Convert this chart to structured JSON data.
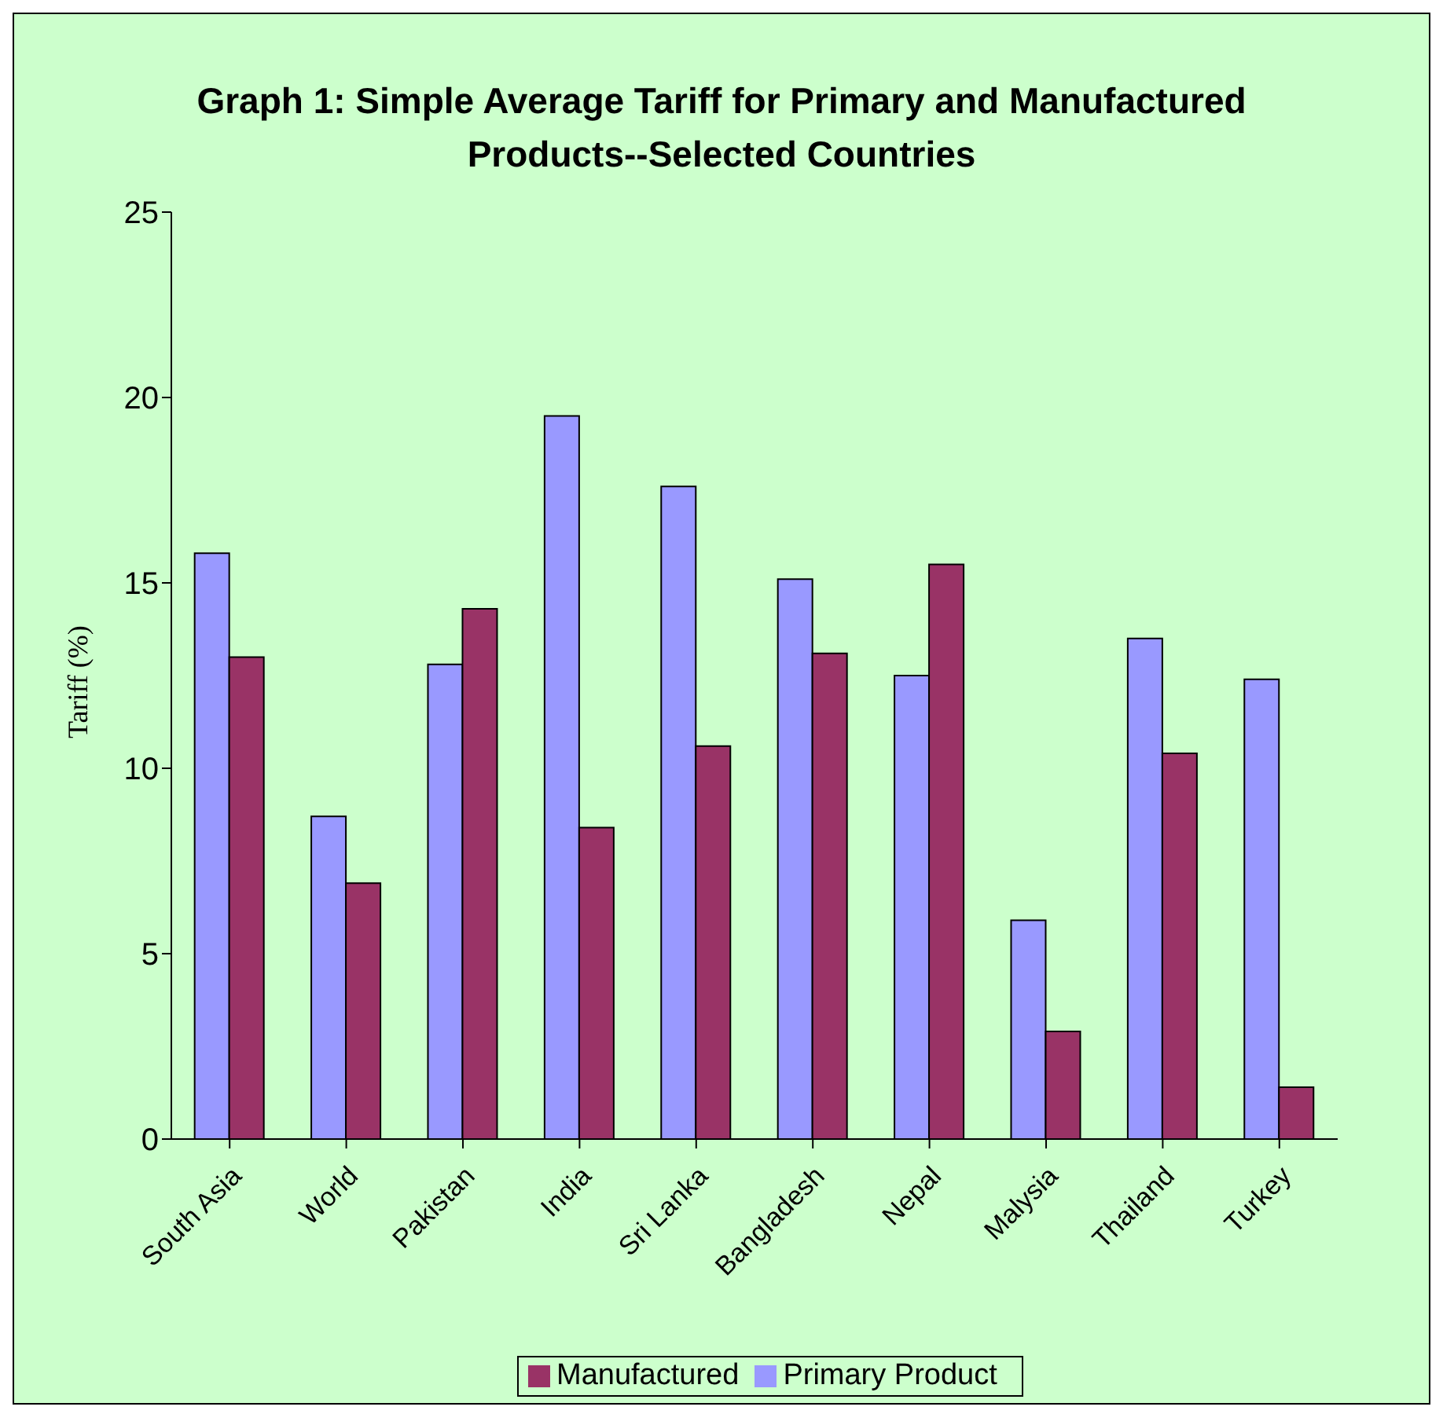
{
  "chart_data": {
    "type": "bar",
    "title": "Graph 1: Simple Average Tariff for Primary and Manufactured Products--Selected Countries",
    "ylabel": "Tariff (%)",
    "categories": [
      "South Asia",
      "World",
      "Pakistan",
      "India",
      "Sri Lanka",
      "Bangladesh",
      "Nepal",
      "Malysia",
      "Thailand",
      "Turkey"
    ],
    "series": [
      {
        "name": "Primary Product",
        "color": "#9999ff",
        "values": [
          15.8,
          8.7,
          12.8,
          19.5,
          17.6,
          15.1,
          12.5,
          5.9,
          13.5,
          12.4
        ]
      },
      {
        "name": "Manufactured",
        "color": "#993366",
        "values": [
          13.0,
          6.9,
          14.3,
          8.4,
          10.6,
          13.1,
          15.5,
          2.9,
          10.4,
          1.4
        ]
      }
    ],
    "ylim": [
      0,
      25
    ],
    "yticks": [
      0,
      5,
      10,
      15,
      20,
      25
    ],
    "grid": false,
    "legend": "bottom"
  }
}
